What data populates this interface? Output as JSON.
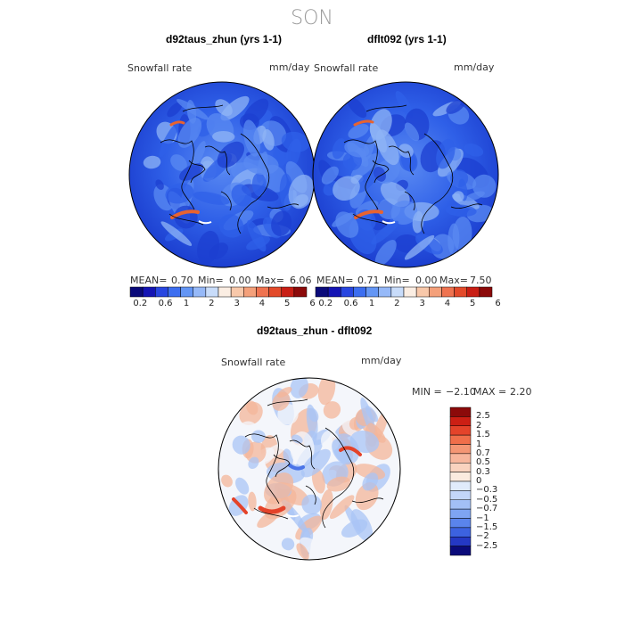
{
  "figure": {
    "season": "SON"
  },
  "panels": [
    {
      "title": "d92taus_zhun (yrs 1-1)",
      "variable": "Snowfall rate",
      "units": "mm/day",
      "stats": {
        "mean_label": "MEAN=",
        "mean": "0.70",
        "min_label": "Min=",
        "min": "0.00",
        "max_label": "Max=",
        "max": "6.06"
      }
    },
    {
      "title": "dflt092 (yrs 1-1)",
      "variable": "Snowfall rate",
      "units": "mm/day",
      "stats": {
        "mean_label": "MEAN=",
        "mean": "0.71",
        "min_label": "Min=",
        "min": "0.00",
        "max_label": "Max=",
        "max": "7.50"
      }
    },
    {
      "title": "d92taus_zhun - dflt092",
      "variable": "Snowfall rate",
      "units": "mm/day",
      "stats": {
        "min_label": "MIN =",
        "min": "−2.10",
        "max_label": "MAX =",
        "max": "2.20"
      }
    }
  ],
  "colorbar_top": {
    "colors": [
      "#0a0a7a",
      "#1414b4",
      "#2846e0",
      "#3c6ef0",
      "#6496f5",
      "#96b9f8",
      "#c8dcfa",
      "#fbeee3",
      "#f8c8aa",
      "#f4a07a",
      "#ef7350",
      "#e34a2a",
      "#c81e14",
      "#8c0a0a"
    ],
    "tick_labels": [
      "0.2",
      "0.6",
      "1",
      "2",
      "3",
      "4",
      "5",
      "6"
    ]
  },
  "colorbar_diff": {
    "colors": [
      "#8c0a0a",
      "#cc1f14",
      "#e4432a",
      "#f06e4a",
      "#f49674",
      "#f7b69c",
      "#f9d3bf",
      "#fbebdf",
      "#e0ebfb",
      "#c3d6f9",
      "#a2bff6",
      "#7ea4f2",
      "#5a84ec",
      "#3c62e0",
      "#2438c4",
      "#0a0a7a"
    ],
    "labels": [
      "2.5",
      "2",
      "1.5",
      "1",
      "0.7",
      "0.5",
      "0.3",
      "0",
      "−0.3",
      "−0.5",
      "−0.7",
      "−1",
      "−1.5",
      "−2",
      "−2.5"
    ]
  },
  "map_colors": {
    "ocean_deep": "#1c3fd0",
    "ocean": "#2f60e8",
    "mid": "#5a8af2",
    "light": "#8fb4f6",
    "high": "#e8632f",
    "coast": "#000000",
    "diff_base": "#f4f6fb",
    "diff_pos": "#f4b69a",
    "diff_pos_strong": "#e4432a",
    "diff_neg": "#a9c4f6",
    "diff_neg_strong": "#4a74e8"
  }
}
